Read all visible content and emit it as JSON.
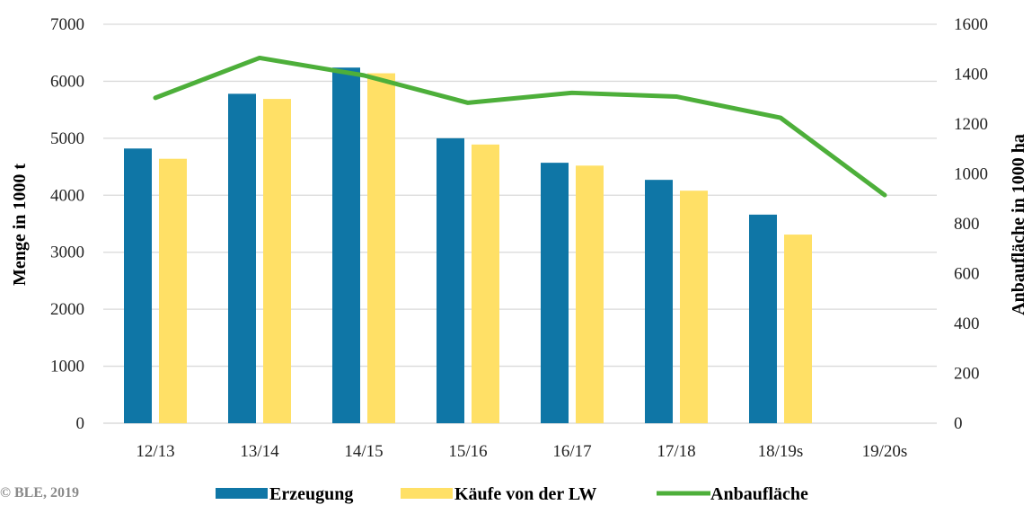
{
  "chart_data": {
    "type": "bar",
    "categories": [
      "12/13",
      "13/14",
      "14/15",
      "15/16",
      "16/17",
      "17/18",
      "18/19s",
      "19/20s"
    ],
    "series": [
      {
        "name": "Erzeugung",
        "type": "bar",
        "axis": "left",
        "color": "#0f76a6",
        "values": [
          4820,
          5780,
          6240,
          5000,
          4570,
          4270,
          3660,
          null
        ]
      },
      {
        "name": "Käufe von der LW",
        "type": "bar",
        "axis": "left",
        "color": "#ffe066",
        "values": [
          4640,
          5690,
          6140,
          4890,
          4520,
          4080,
          3310,
          null
        ]
      },
      {
        "name": "Anbaufläche",
        "type": "line",
        "axis": "right",
        "color": "#4daf3a",
        "values": [
          1305,
          1465,
          1395,
          1285,
          1325,
          1310,
          1225,
          915
        ]
      }
    ],
    "ylabel": "Menge in 1000 t",
    "ylim": [
      0,
      7000
    ],
    "yticks": [
      0,
      1000,
      2000,
      3000,
      4000,
      5000,
      6000,
      7000
    ],
    "y2label": "Anbaufläche in 1000 ha",
    "y2lim": [
      0,
      1600
    ],
    "y2ticks": [
      0,
      200,
      400,
      600,
      800,
      1000,
      1200,
      1400,
      1600
    ],
    "grid": true,
    "legend_position": "bottom"
  },
  "copyright": "© BLE, 2019"
}
